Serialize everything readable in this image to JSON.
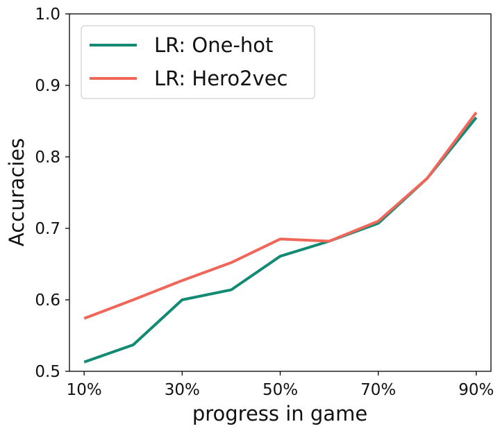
{
  "chart_data": {
    "type": "line",
    "xlabel": "progress in game",
    "ylabel": "Accuracies",
    "x": [
      0.1,
      0.2,
      0.3,
      0.4,
      0.5,
      0.6,
      0.7,
      0.8,
      0.9
    ],
    "xticks": [
      0.1,
      0.3,
      0.5,
      0.7,
      0.9
    ],
    "xtick_labels": [
      "10%",
      "30%",
      "50%",
      "70%",
      "90%"
    ],
    "xlim": [
      0.07,
      0.93
    ],
    "ylim": [
      0.5,
      1.0
    ],
    "yticks": [
      0.5,
      0.6,
      0.7,
      0.8,
      0.9,
      1.0
    ],
    "ytick_labels": [
      "0.5",
      "0.6",
      "0.7",
      "0.8",
      "0.9",
      "1.0"
    ],
    "grid": false,
    "legend_position": "top-left",
    "series": [
      {
        "name": "LR: One-hot",
        "color": "#138a74",
        "values": [
          0.513,
          0.537,
          0.6,
          0.614,
          0.661,
          0.682,
          0.707,
          0.77,
          0.855
        ]
      },
      {
        "name": "LR: Hero2vec",
        "color": "#f0675a",
        "values": [
          0.574,
          0.6,
          0.627,
          0.652,
          0.685,
          0.682,
          0.71,
          0.77,
          0.862
        ]
      }
    ]
  }
}
